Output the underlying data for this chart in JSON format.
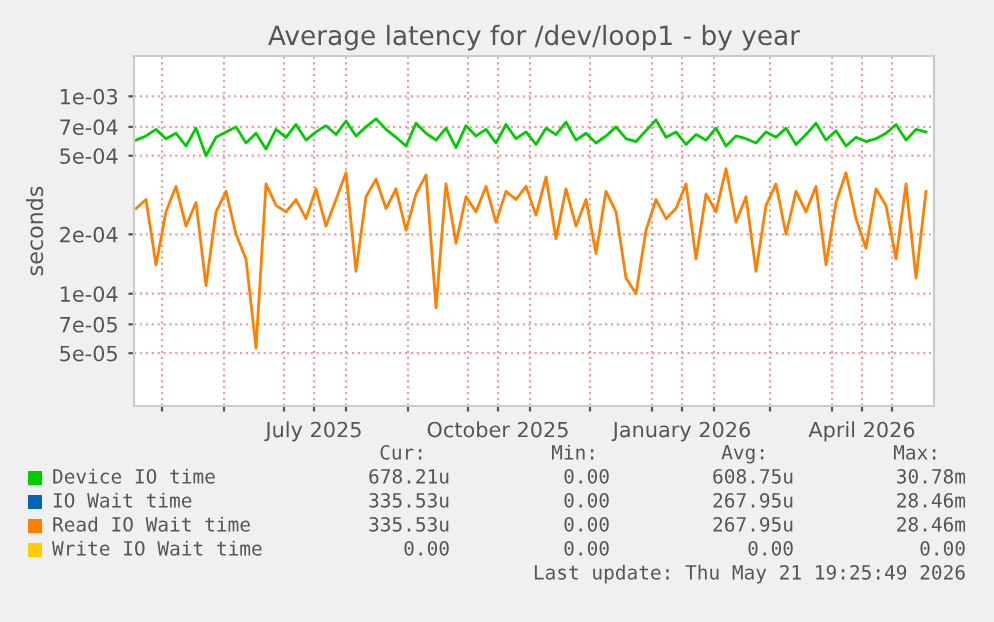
{
  "chart_data": {
    "type": "line",
    "title": "Average latency for /dev/loop1 - by year",
    "ylabel": "seconds",
    "log": "y",
    "grid": true,
    "legend": "bottom",
    "ylim": [
      2.7e-05,
      0.0016
    ],
    "yticks": [
      {
        "value": 5e-05,
        "label": "5e-05"
      },
      {
        "value": 7e-05,
        "label": "7e-05"
      },
      {
        "value": 0.0001,
        "label": "1e-04"
      },
      {
        "value": 0.0002,
        "label": "2e-04"
      },
      {
        "value": 0.0005,
        "label": "5e-04"
      },
      {
        "value": 0.0007,
        "label": "7e-04"
      },
      {
        "value": 0.001,
        "label": "1e-03"
      }
    ],
    "xlim": [
      "2025-04-17",
      "2026-05-22"
    ],
    "xticks": [
      {
        "value": "2025-05-01",
        "label": null
      },
      {
        "value": "2025-06-01",
        "label": null
      },
      {
        "value": "2025-07-01",
        "label": null
      },
      {
        "value": "2025-07-16",
        "label": "July 2025"
      },
      {
        "value": "2025-08-01",
        "label": null
      },
      {
        "value": "2025-09-01",
        "label": null
      },
      {
        "value": "2025-10-01",
        "label": null
      },
      {
        "value": "2025-10-16",
        "label": "October 2025"
      },
      {
        "value": "2025-11-01",
        "label": null
      },
      {
        "value": "2025-12-01",
        "label": null
      },
      {
        "value": "2026-01-01",
        "label": null
      },
      {
        "value": "2026-01-16",
        "label": "January 2026"
      },
      {
        "value": "2026-02-01",
        "label": null
      },
      {
        "value": "2026-03-01",
        "label": null
      },
      {
        "value": "2026-04-01",
        "label": null
      },
      {
        "value": "2026-04-16",
        "label": "April 2026"
      },
      {
        "value": "2026-05-01",
        "label": null
      }
    ],
    "x": [
      "2025-04-18",
      "2025-04-23",
      "2025-04-28",
      "2025-05-03",
      "2025-05-08",
      "2025-05-13",
      "2025-05-18",
      "2025-05-23",
      "2025-05-28",
      "2025-06-02",
      "2025-06-07",
      "2025-06-12",
      "2025-06-17",
      "2025-06-22",
      "2025-06-27",
      "2025-07-02",
      "2025-07-07",
      "2025-07-12",
      "2025-07-17",
      "2025-07-22",
      "2025-07-27",
      "2025-08-01",
      "2025-08-06",
      "2025-08-11",
      "2025-08-16",
      "2025-08-21",
      "2025-08-26",
      "2025-08-31",
      "2025-09-05",
      "2025-09-10",
      "2025-09-15",
      "2025-09-20",
      "2025-09-25",
      "2025-09-30",
      "2025-10-05",
      "2025-10-10",
      "2025-10-15",
      "2025-10-20",
      "2025-10-25",
      "2025-10-30",
      "2025-11-04",
      "2025-11-09",
      "2025-11-14",
      "2025-11-19",
      "2025-11-24",
      "2025-11-29",
      "2025-12-04",
      "2025-12-09",
      "2025-12-14",
      "2025-12-19",
      "2025-12-24",
      "2025-12-29",
      "2026-01-03",
      "2026-01-08",
      "2026-01-13",
      "2026-01-18",
      "2026-01-23",
      "2026-01-28",
      "2026-02-02",
      "2026-02-07",
      "2026-02-12",
      "2026-02-17",
      "2026-02-22",
      "2026-02-27",
      "2026-03-04",
      "2026-03-09",
      "2026-03-14",
      "2026-03-19",
      "2026-03-24",
      "2026-03-29",
      "2026-04-03",
      "2026-04-08",
      "2026-04-13",
      "2026-04-18",
      "2026-04-23",
      "2026-04-28",
      "2026-05-03",
      "2026-05-08",
      "2026-05-13",
      "2026-05-18"
    ],
    "series": [
      {
        "name": "Device IO time",
        "color": "#00cc00",
        "values": [
          0.0006,
          0.00063,
          0.00068,
          0.00061,
          0.00065,
          0.00056,
          0.00069,
          0.0005,
          0.00062,
          0.00066,
          0.0007,
          0.00058,
          0.00065,
          0.00054,
          0.00068,
          0.00062,
          0.00072,
          0.0006,
          0.00066,
          0.00071,
          0.00064,
          0.00075,
          0.00063,
          0.0007,
          0.00077,
          0.00068,
          0.00062,
          0.00056,
          0.00073,
          0.00065,
          0.0006,
          0.00069,
          0.00055,
          0.00071,
          0.00063,
          0.00068,
          0.00058,
          0.00072,
          0.00061,
          0.00066,
          0.00057,
          0.00069,
          0.00064,
          0.00074,
          0.0006,
          0.00065,
          0.00058,
          0.00063,
          0.0007,
          0.00061,
          0.00059,
          0.00067,
          0.00076,
          0.00062,
          0.00066,
          0.00057,
          0.00064,
          0.0006,
          0.00069,
          0.00056,
          0.00063,
          0.00061,
          0.00058,
          0.00066,
          0.00062,
          0.00069,
          0.00057,
          0.00064,
          0.00073,
          0.0006,
          0.00067,
          0.00056,
          0.00062,
          0.00059,
          0.00061,
          0.00065,
          0.00072,
          0.0006,
          0.00068,
          0.00066
        ]
      },
      {
        "name": "IO Wait time",
        "color": "#0066b3",
        "values": [
          null,
          null,
          null,
          null,
          null,
          null,
          null,
          null,
          null,
          null,
          null,
          null,
          null,
          null,
          null,
          null,
          null,
          null,
          null,
          null,
          null,
          null,
          null,
          null,
          null,
          null,
          null,
          null,
          null,
          null,
          null,
          null,
          null,
          null,
          null,
          null,
          null,
          null,
          null,
          null,
          null,
          null,
          null,
          null,
          null,
          null,
          null,
          null,
          null,
          null,
          null,
          null,
          null,
          null,
          null,
          null,
          null,
          null,
          null,
          null,
          null,
          null,
          null,
          null,
          null,
          null,
          null,
          null,
          null,
          null,
          null,
          null,
          null,
          null,
          null,
          null,
          null,
          null,
          null,
          null
        ]
      },
      {
        "name": "Read IO Wait time",
        "color": "#ff8000",
        "values": [
          0.00027,
          0.0003,
          0.00014,
          0.00026,
          0.00035,
          0.00022,
          0.00029,
          0.00011,
          0.00026,
          0.00033,
          0.0002,
          0.00015,
          5.3e-05,
          0.00036,
          0.00028,
          0.00026,
          0.0003,
          0.00024,
          0.00034,
          0.00022,
          0.0003,
          0.00041,
          0.00013,
          0.00031,
          0.00038,
          0.00027,
          0.00034,
          0.00021,
          0.00032,
          0.0004,
          8.5e-05,
          0.00036,
          0.00018,
          0.00031,
          0.00026,
          0.00035,
          0.00023,
          0.00033,
          0.0003,
          0.00035,
          0.00025,
          0.00039,
          0.00019,
          0.00034,
          0.00022,
          0.0003,
          0.00016,
          0.00033,
          0.00026,
          0.00012,
          0.0001,
          0.00021,
          0.0003,
          0.00024,
          0.00027,
          0.00036,
          0.00015,
          0.00032,
          0.00026,
          0.00043,
          0.00023,
          0.00031,
          0.00013,
          0.00028,
          0.00036,
          0.0002,
          0.00033,
          0.00026,
          0.00035,
          0.00014,
          0.00029,
          0.00041,
          0.00024,
          0.00017,
          0.00034,
          0.00028,
          0.00015,
          0.00036,
          0.00012,
          0.00033
        ]
      },
      {
        "name": "Write IO Wait time",
        "color": "#ffcc00",
        "values": [
          null,
          null,
          null,
          null,
          null,
          null,
          null,
          null,
          null,
          null,
          null,
          null,
          null,
          null,
          null,
          null,
          null,
          null,
          null,
          null,
          null,
          null,
          null,
          null,
          null,
          null,
          null,
          null,
          null,
          null,
          null,
          null,
          null,
          null,
          null,
          null,
          null,
          null,
          null,
          null,
          null,
          null,
          null,
          null,
          null,
          null,
          null,
          null,
          null,
          null,
          null,
          null,
          null,
          null,
          null,
          null,
          null,
          null,
          null,
          null,
          null,
          null,
          null,
          null,
          null,
          null,
          null,
          null,
          null,
          null,
          null,
          null,
          null,
          null,
          null,
          null,
          null,
          null,
          null,
          null
        ]
      }
    ],
    "annotations": [
      "Cur:",
      "Min:",
      "Avg:",
      "Max:",
      "678.21u",
      "0.00",
      "608.75u",
      "30.78m",
      "335.53u",
      "0.00",
      "267.95u",
      "28.46m",
      "335.53u",
      "0.00",
      "267.95u",
      "28.46m",
      "0.00",
      "0.00",
      "0.00",
      "0.00",
      "Last update: Thu May 21 19:25:49 2026"
    ]
  }
}
